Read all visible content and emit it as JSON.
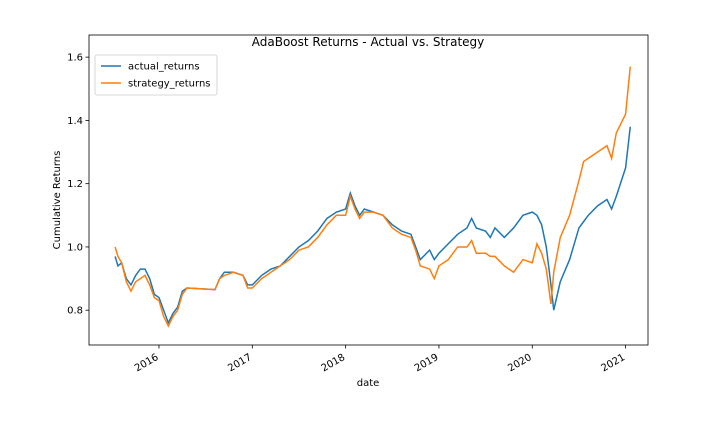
{
  "chart_data": {
    "type": "line",
    "title": "AdaBoost Returns - Actual vs. Strategy",
    "xlabel": "date",
    "ylabel": "Cumulative Returns",
    "x": [
      2015.53,
      2015.56,
      2015.6,
      2015.65,
      2015.7,
      2015.75,
      2015.8,
      2015.85,
      2015.9,
      2015.95,
      2016.0,
      2016.05,
      2016.1,
      2016.15,
      2016.2,
      2016.25,
      2016.3,
      2016.6,
      2016.65,
      2016.7,
      2016.8,
      2016.9,
      2016.95,
      2017.0,
      2017.1,
      2017.2,
      2017.3,
      2017.4,
      2017.5,
      2017.6,
      2017.7,
      2017.8,
      2017.9,
      2018.0,
      2018.05,
      2018.1,
      2018.15,
      2018.2,
      2018.3,
      2018.4,
      2018.5,
      2018.6,
      2018.7,
      2018.75,
      2018.8,
      2018.9,
      2018.95,
      2019.0,
      2019.1,
      2019.2,
      2019.3,
      2019.35,
      2019.4,
      2019.5,
      2019.55,
      2019.6,
      2019.7,
      2019.8,
      2019.9,
      2020.0,
      2020.05,
      2020.1,
      2020.15,
      2020.2,
      2020.23,
      2020.3,
      2020.4,
      2020.5,
      2020.55,
      2020.6,
      2020.7,
      2020.8,
      2020.85,
      2020.9,
      2021.0,
      2021.05
    ],
    "series": [
      {
        "name": "actual_returns",
        "color": "#1f77b4",
        "values": [
          0.97,
          0.94,
          0.95,
          0.9,
          0.88,
          0.91,
          0.93,
          0.93,
          0.9,
          0.85,
          0.84,
          0.8,
          0.76,
          0.79,
          0.81,
          0.86,
          0.87,
          0.865,
          0.9,
          0.92,
          0.92,
          0.91,
          0.88,
          0.88,
          0.91,
          0.93,
          0.94,
          0.97,
          1.0,
          1.02,
          1.05,
          1.09,
          1.11,
          1.12,
          1.17,
          1.13,
          1.1,
          1.12,
          1.11,
          1.1,
          1.07,
          1.05,
          1.04,
          1.0,
          0.96,
          0.99,
          0.96,
          0.98,
          1.01,
          1.04,
          1.06,
          1.09,
          1.06,
          1.05,
          1.03,
          1.06,
          1.03,
          1.06,
          1.1,
          1.11,
          1.1,
          1.07,
          1.0,
          0.88,
          0.8,
          0.89,
          0.96,
          1.06,
          1.08,
          1.1,
          1.13,
          1.15,
          1.12,
          1.16,
          1.25,
          1.38
        ]
      },
      {
        "name": "strategy_returns",
        "color": "#ff7f0e",
        "values": [
          1.0,
          0.97,
          0.95,
          0.89,
          0.86,
          0.89,
          0.9,
          0.91,
          0.88,
          0.84,
          0.83,
          0.78,
          0.75,
          0.78,
          0.8,
          0.85,
          0.87,
          0.865,
          0.9,
          0.91,
          0.92,
          0.91,
          0.87,
          0.87,
          0.9,
          0.92,
          0.94,
          0.96,
          0.99,
          1.0,
          1.03,
          1.07,
          1.1,
          1.1,
          1.16,
          1.12,
          1.09,
          1.11,
          1.11,
          1.1,
          1.06,
          1.04,
          1.03,
          0.99,
          0.94,
          0.93,
          0.9,
          0.94,
          0.96,
          1.0,
          1.0,
          1.02,
          0.98,
          0.98,
          0.97,
          0.97,
          0.94,
          0.92,
          0.96,
          0.95,
          1.01,
          0.98,
          0.93,
          0.82,
          0.92,
          1.03,
          1.1,
          1.21,
          1.27,
          1.28,
          1.3,
          1.32,
          1.28,
          1.36,
          1.42,
          1.57
        ]
      }
    ],
    "xlim": [
      2015.25,
      2021.24
    ],
    "xticks": [
      2016,
      2017,
      2018,
      2019,
      2020,
      2021
    ],
    "ylim": [
      0.69,
      1.67
    ],
    "yticks": [
      0.8,
      {
        "value": 1,
        "label": "1.0"
      },
      1.2,
      1.4,
      1.6
    ],
    "legend": "upper left"
  }
}
